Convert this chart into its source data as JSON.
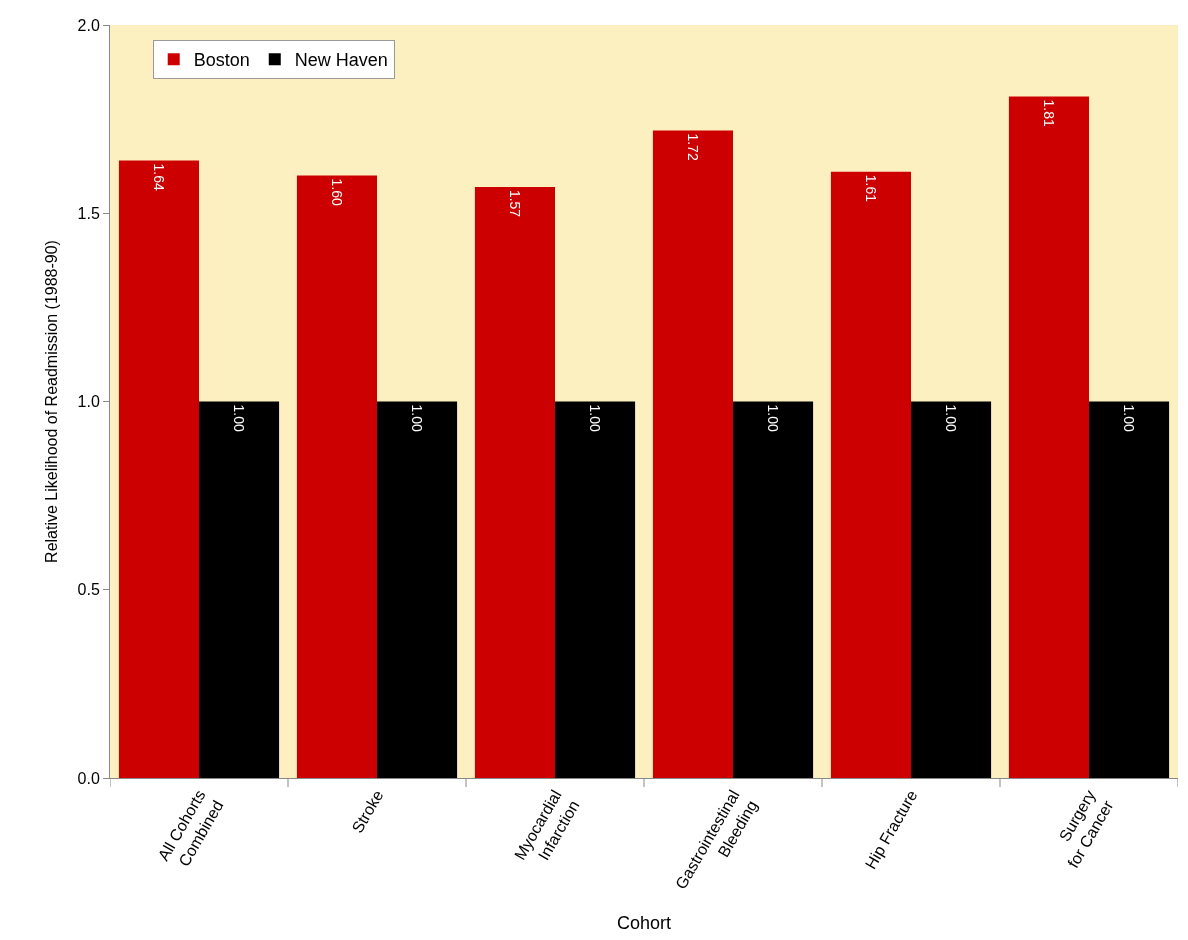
{
  "chart_data": {
    "type": "bar",
    "xlabel": "Cohort",
    "ylabel": "Relative Likelihood of Readmission (1988-90)",
    "categories": [
      "All Cohorts\nCombined",
      "Stroke",
      "Myocardial\nInfarction",
      "Gastrointestinal\nBleeding",
      "Hip Fracture",
      "Surgery\nfor Cancer"
    ],
    "series": [
      {
        "name": "Boston",
        "color": "#cc0000",
        "values": [
          1.64,
          1.6,
          1.57,
          1.72,
          1.61,
          1.81
        ],
        "value_labels": [
          "1.64",
          "1.60",
          "1.57",
          "1.72",
          "1.61",
          "1.81"
        ]
      },
      {
        "name": "New Haven",
        "color": "#000000",
        "values": [
          1.0,
          1.0,
          1.0,
          1.0,
          1.0,
          1.0
        ],
        "value_labels": [
          "1.00",
          "1.00",
          "1.00",
          "1.00",
          "1.00",
          "1.00"
        ]
      }
    ],
    "ylim": [
      0,
      2.0
    ],
    "yticks": [
      {
        "value": 0,
        "label": "0.0"
      },
      {
        "value": 0.5,
        "label": "0.5"
      },
      {
        "value": 1.0,
        "label": "1.0"
      },
      {
        "value": 1.5,
        "label": "1.5"
      },
      {
        "value": 2.0,
        "label": "2.0"
      }
    ],
    "grid": false,
    "legend": "top left"
  }
}
